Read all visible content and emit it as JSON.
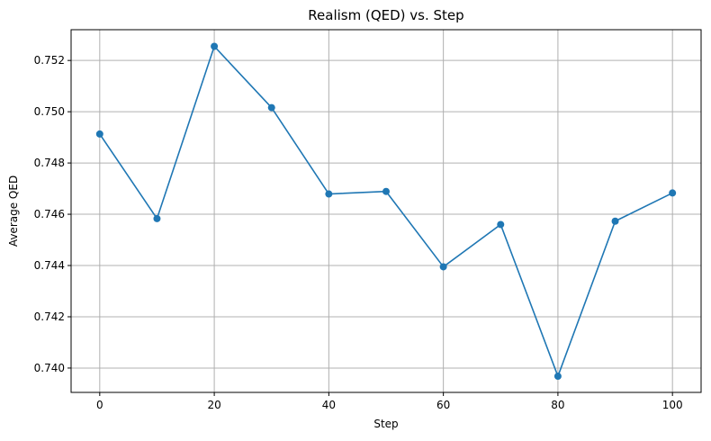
{
  "chart_data": {
    "type": "line",
    "title": "Realism (QED) vs. Step",
    "xlabel": "Step",
    "ylabel": "Average QED",
    "x": [
      0,
      10,
      20,
      30,
      40,
      50,
      60,
      70,
      80,
      90,
      100
    ],
    "series": [
      {
        "values": [
          0.74913,
          0.74583,
          0.75255,
          0.75016,
          0.74679,
          0.74689,
          0.74395,
          0.7456,
          0.73968,
          0.74573,
          0.74683
        ]
      }
    ],
    "xlim": [
      -5,
      105
    ],
    "ylim": [
      0.73905,
      0.7532
    ],
    "xticks": [
      0,
      20,
      40,
      60,
      80,
      100
    ],
    "yticks": [
      0.74,
      0.742,
      0.744,
      0.746,
      0.748,
      0.75,
      0.752
    ],
    "grid": true,
    "legend": "none",
    "colors": {
      "line": "#1f77b4",
      "grid": "#b0b0b0",
      "axes": "#000000"
    }
  }
}
